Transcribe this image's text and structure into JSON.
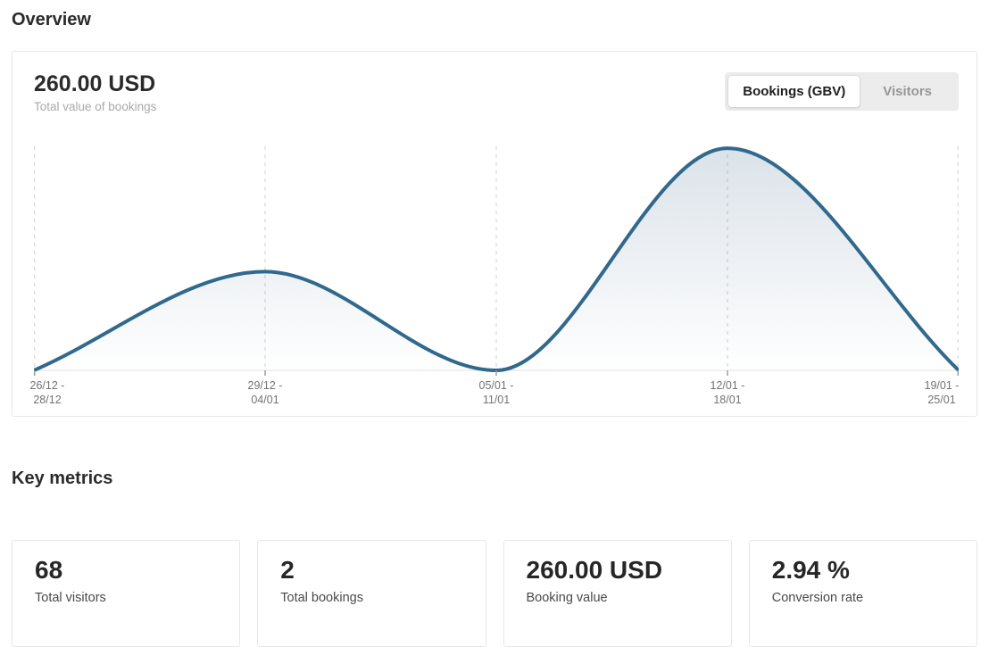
{
  "page": {
    "title": "Overview",
    "key_metrics_heading": "Key metrics"
  },
  "overview_card": {
    "value": "260.00 USD",
    "subtitle": "Total value of bookings",
    "toggle": {
      "options": [
        {
          "label": "Bookings (GBV)",
          "active": true
        },
        {
          "label": "Visitors",
          "active": false
        }
      ]
    }
  },
  "chart_data": {
    "type": "area",
    "title": "Total value of bookings",
    "series_name": "Bookings (GBV)",
    "unit": "USD",
    "categories": [
      "26/12 - 28/12",
      "29/12 - 04/01",
      "05/01 - 11/01",
      "12/01 - 18/01",
      "19/01 - 25/01"
    ],
    "values": [
      0,
      80,
      0,
      180,
      0
    ],
    "ylim": [
      0,
      183
    ],
    "grid": "dashed-vertical",
    "legend_position": "none",
    "line_color": "#31698d",
    "area_gradient_top": "rgba(73,111,145,0.20)",
    "area_gradient_bottom": "rgba(73,111,145,0)",
    "gridline_color": "#cfcfcf",
    "axis_line_color": "#e2e2e2",
    "tick_color": "#9c9c9c",
    "label_color": "#737373"
  },
  "metrics": [
    {
      "value": "68",
      "label": "Total visitors"
    },
    {
      "value": "2",
      "label": "Total bookings"
    },
    {
      "value": "260.00 USD",
      "label": "Booking value"
    },
    {
      "value": "2.94 %",
      "label": "Conversion rate"
    }
  ]
}
